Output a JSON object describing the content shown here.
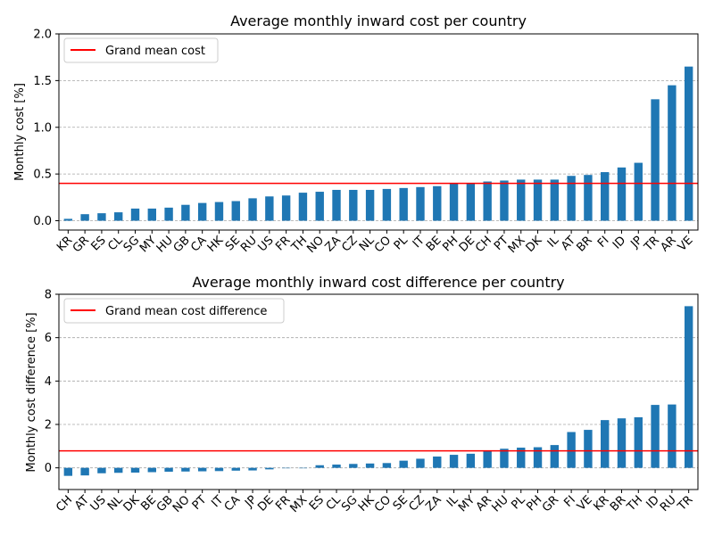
{
  "colors": {
    "bar": "#1f77b4",
    "mean_line": "#ff0000",
    "grid": "#a6a6a6"
  },
  "chart_data": [
    {
      "type": "bar",
      "title": "Average monthly inward cost per country",
      "xlabel": "",
      "ylabel": "Monthly cost [%]",
      "ylim": [
        -0.1,
        2.0
      ],
      "yticks": [
        "0.0",
        "0.5",
        "1.0",
        "1.5",
        "2.0"
      ],
      "grid": "horizontal dashed",
      "legend_position": "top-left",
      "legend": [
        "Grand mean cost"
      ],
      "mean_value": 0.4,
      "categories": [
        "KR",
        "GR",
        "ES",
        "CL",
        "SG",
        "MY",
        "HU",
        "GB",
        "CA",
        "HK",
        "SE",
        "RU",
        "US",
        "FR",
        "TH",
        "NO",
        "ZA",
        "CZ",
        "NL",
        "CO",
        "PL",
        "IT",
        "BE",
        "PH",
        "DE",
        "CH",
        "PT",
        "MX",
        "DK",
        "IL",
        "AT",
        "BR",
        "FI",
        "ID",
        "JP",
        "TR",
        "AR",
        "VE"
      ],
      "values": [
        0.02,
        0.07,
        0.08,
        0.09,
        0.13,
        0.13,
        0.14,
        0.17,
        0.19,
        0.2,
        0.21,
        0.24,
        0.26,
        0.27,
        0.3,
        0.31,
        0.33,
        0.33,
        0.33,
        0.34,
        0.35,
        0.36,
        0.37,
        0.4,
        0.4,
        0.42,
        0.43,
        0.44,
        0.44,
        0.44,
        0.48,
        0.49,
        0.52,
        0.57,
        0.62,
        1.3,
        1.45,
        1.65
      ]
    },
    {
      "type": "bar",
      "title": "Average monthly inward cost difference per country",
      "xlabel": "",
      "ylabel": "Monthly cost difference [%]",
      "ylim": [
        -1.0,
        8.0
      ],
      "yticks": [
        "0",
        "2",
        "4",
        "6",
        "8"
      ],
      "grid": "horizontal dashed",
      "legend_position": "top-left",
      "legend": [
        "Grand mean cost difference"
      ],
      "mean_value": 0.78,
      "categories": [
        "CH",
        "AT",
        "US",
        "NL",
        "DK",
        "BE",
        "GB",
        "NO",
        "PT",
        "IT",
        "CA",
        "JP",
        "DE",
        "FR",
        "MX",
        "ES",
        "CL",
        "SG",
        "HK",
        "CO",
        "SE",
        "CZ",
        "ZA",
        "IL",
        "MY",
        "AR",
        "HU",
        "PL",
        "PH",
        "GR",
        "FI",
        "VE",
        "KR",
        "BR",
        "TH",
        "ID",
        "RU",
        "TR"
      ],
      "values": [
        -0.37,
        -0.35,
        -0.25,
        -0.23,
        -0.22,
        -0.2,
        -0.18,
        -0.17,
        -0.16,
        -0.15,
        -0.13,
        -0.12,
        -0.07,
        -0.01,
        0.0,
        0.12,
        0.15,
        0.18,
        0.2,
        0.22,
        0.33,
        0.42,
        0.52,
        0.6,
        0.65,
        0.78,
        0.88,
        0.93,
        0.95,
        1.05,
        1.65,
        1.75,
        2.2,
        2.28,
        2.33,
        2.9,
        2.92,
        7.45
      ]
    }
  ]
}
